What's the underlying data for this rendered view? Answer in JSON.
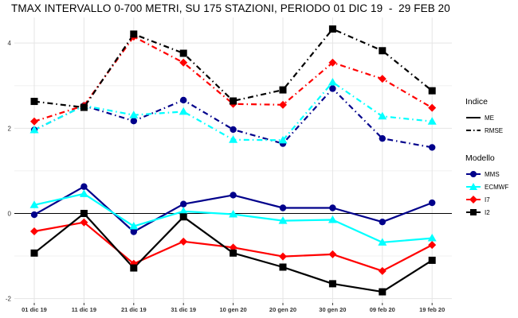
{
  "chart_data": {
    "type": "line",
    "title": "TMAX INTERVALLO 0-700 METRI, SU 175 STAZIONI, PERIODO 01 DIC 19  -  29 FEB 20",
    "xlabel": "",
    "ylabel": "",
    "categories": [
      "01 dic 19",
      "11 dic 19",
      "21 dic 19",
      "31 dic 19",
      "10 gen 20",
      "20 gen 20",
      "30 gen 20",
      "09 feb 20",
      "19 feb 20"
    ],
    "ylim": [
      -2.1,
      4.6
    ],
    "yticks": [
      -2,
      0,
      2,
      4
    ],
    "grid": true,
    "zero_line": true,
    "series": [
      {
        "name": "MMS",
        "indice": "ME",
        "color": "#00008b",
        "marker": "circle",
        "values": [
          -0.03,
          0.63,
          -0.43,
          0.22,
          0.43,
          0.13,
          0.13,
          -0.2,
          0.25
        ]
      },
      {
        "name": "ECMWF",
        "indice": "ME",
        "color": "#00ffff",
        "marker": "triangle",
        "values": [
          0.2,
          0.46,
          -0.3,
          0.05,
          -0.02,
          -0.17,
          -0.15,
          -0.68,
          -0.58
        ]
      },
      {
        "name": "I7",
        "indice": "ME",
        "color": "#ff0000",
        "marker": "diamond",
        "values": [
          -0.42,
          -0.21,
          -1.18,
          -0.66,
          -0.8,
          -1.01,
          -0.96,
          -1.35,
          -0.74
        ]
      },
      {
        "name": "I2",
        "indice": "ME",
        "color": "#000000",
        "marker": "square",
        "values": [
          -0.93,
          0.0,
          -1.28,
          -0.08,
          -0.93,
          -1.26,
          -1.65,
          -1.84,
          -1.1
        ]
      },
      {
        "name": "MMS",
        "indice": "RMSE",
        "color": "#00008b",
        "marker": "circle",
        "values": [
          1.96,
          2.53,
          2.17,
          2.66,
          1.97,
          1.64,
          2.93,
          1.76,
          1.55
        ]
      },
      {
        "name": "ECMWF",
        "indice": "RMSE",
        "color": "#00ffff",
        "marker": "triangle",
        "values": [
          1.96,
          2.53,
          2.31,
          2.39,
          1.73,
          1.72,
          3.08,
          2.28,
          2.16
        ]
      },
      {
        "name": "I7",
        "indice": "RMSE",
        "color": "#ff0000",
        "marker": "diamond",
        "values": [
          2.16,
          2.53,
          4.15,
          3.54,
          2.57,
          2.55,
          3.54,
          3.16,
          2.48
        ]
      },
      {
        "name": "I2",
        "indice": "RMSE",
        "color": "#000000",
        "marker": "square",
        "values": [
          2.63,
          2.49,
          4.21,
          3.76,
          2.64,
          2.9,
          4.33,
          3.82,
          2.88
        ]
      }
    ],
    "legend": {
      "placement": "right",
      "indice_title": "Indice",
      "indice_items": [
        {
          "label": "ME",
          "dash": "solid"
        },
        {
          "label": "RMSE",
          "dash": "dotdash"
        }
      ],
      "modello_title": "Modello",
      "modello_items": [
        {
          "label": "MMS",
          "color": "#00008b",
          "marker": "circle"
        },
        {
          "label": "ECMWF",
          "color": "#00ffff",
          "marker": "triangle"
        },
        {
          "label": "I7",
          "color": "#ff0000",
          "marker": "diamond"
        },
        {
          "label": "I2",
          "color": "#000000",
          "marker": "square"
        }
      ]
    }
  }
}
